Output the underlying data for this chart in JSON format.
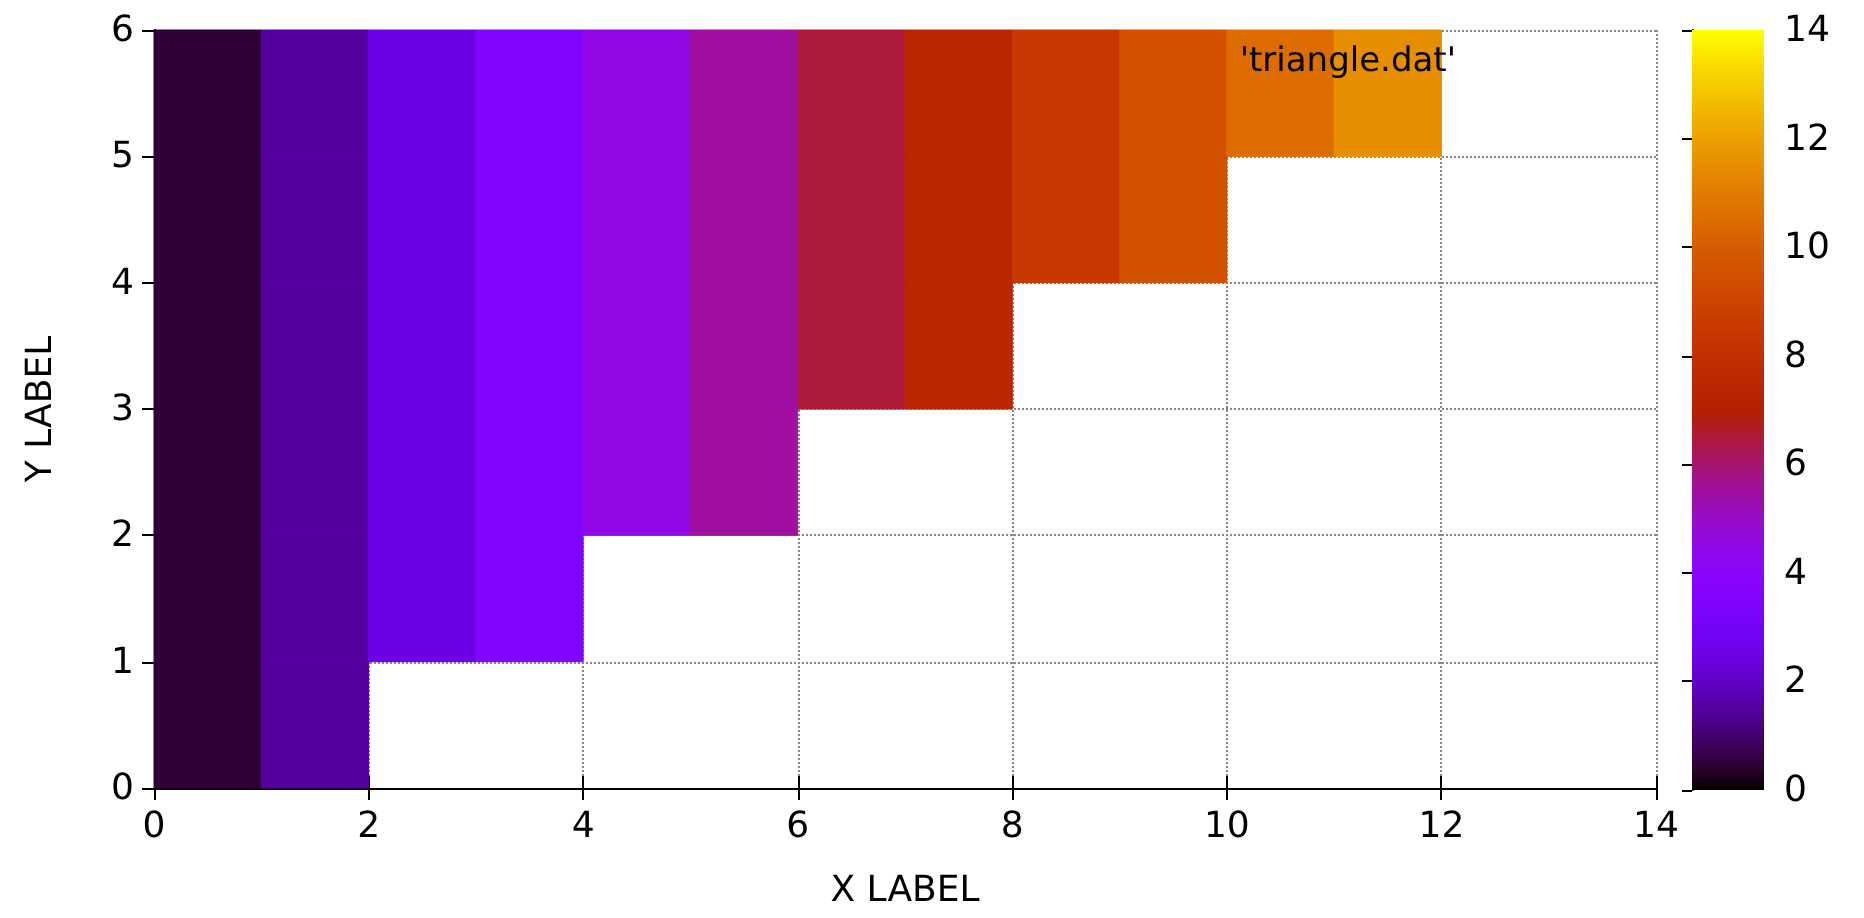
{
  "chart_data": {
    "type": "heatmap",
    "xlabel": "X LABEL",
    "ylabel": "Y LABEL",
    "annotations": [
      "'triangle.dat'"
    ],
    "xlim": [
      0,
      14
    ],
    "ylim": [
      0,
      6
    ],
    "xticks": [
      0,
      2,
      4,
      6,
      8,
      10,
      12,
      14
    ],
    "yticks": [
      0,
      1,
      2,
      3,
      4,
      5,
      6
    ],
    "clim": [
      0,
      14
    ],
    "cticks": [
      0,
      2,
      4,
      6,
      8,
      10,
      12,
      14
    ],
    "grid": true,
    "cells": [
      [
        0.5,
        1.5,
        2.5,
        3.5,
        4.5,
        5.5,
        6.5,
        7.5,
        8.5,
        9.5,
        10.5,
        11.5,
        null,
        null
      ],
      [
        0.5,
        1.5,
        2.5,
        3.5,
        4.5,
        5.5,
        6.5,
        7.5,
        8.5,
        9.5,
        null,
        null,
        null,
        null
      ],
      [
        0.5,
        1.5,
        2.5,
        3.5,
        4.5,
        5.5,
        6.5,
        7.5,
        null,
        null,
        null,
        null,
        null,
        null
      ],
      [
        0.5,
        1.5,
        2.5,
        3.5,
        4.5,
        5.5,
        null,
        null,
        null,
        null,
        null,
        null,
        null,
        null
      ],
      [
        0.5,
        1.5,
        2.5,
        3.5,
        null,
        null,
        null,
        null,
        null,
        null,
        null,
        null,
        null,
        null
      ],
      [
        0.5,
        1.5,
        null,
        null,
        null,
        null,
        null,
        null,
        null,
        null,
        null,
        null,
        null,
        null
      ]
    ]
  }
}
